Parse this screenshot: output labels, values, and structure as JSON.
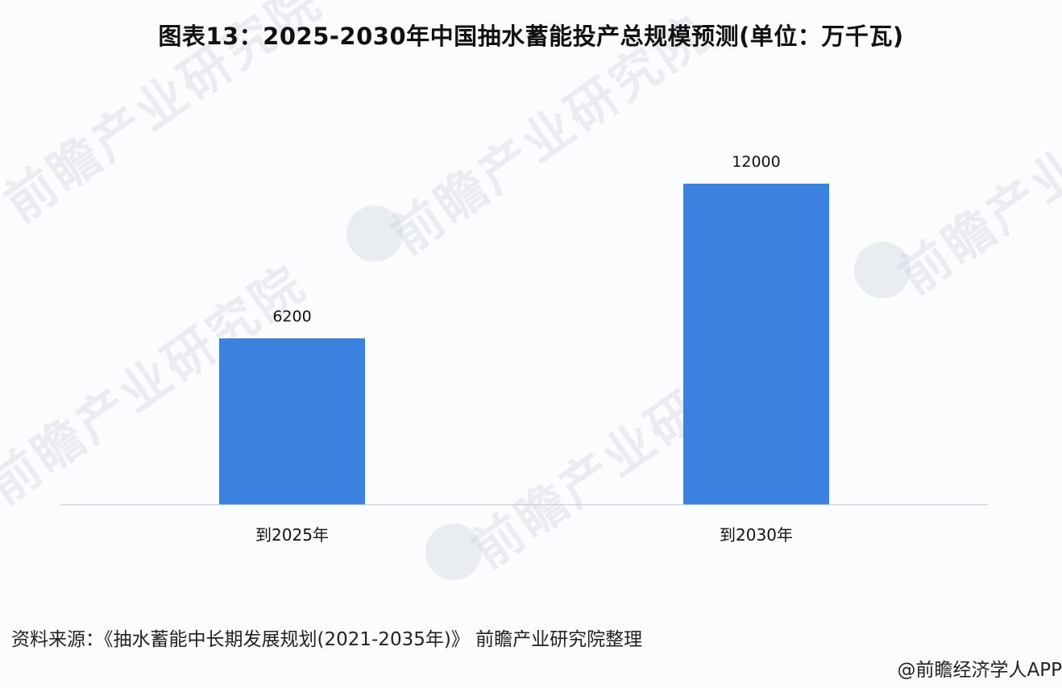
{
  "chart_data": {
    "type": "bar",
    "title": "图表13：2025-2030年中国抽水蓄能投产总规模预测(单位：万千瓦)",
    "categories": [
      "到2025年",
      "到2030年"
    ],
    "values": [
      6200,
      12000
    ],
    "series": [
      {
        "name": "抽水蓄能投产总规模",
        "values": [
          6200,
          12000
        ]
      }
    ],
    "xlabel": "",
    "ylabel": "万千瓦",
    "ylim": [
      0,
      13000
    ],
    "grid": false,
    "legend": "none",
    "data_labels": [
      "6200",
      "12000"
    ],
    "bar_color": "#3b82e0"
  },
  "header": {
    "title": "图表13：2025-2030年中国抽水蓄能投产总规模预测(单位：万千瓦)"
  },
  "bars": [
    {
      "category": "到2025年",
      "value": 6200,
      "label": "6200"
    },
    {
      "category": "到2030年",
      "value": 12000,
      "label": "12000"
    }
  ],
  "footer": {
    "source": "资料来源：《抽水蓄能中长期发展规划(2021-2035年)》 前瞻产业研究院整理",
    "credit": "@前瞻经济学人APP"
  },
  "watermark": {
    "text": "前瞻产业研究院"
  }
}
